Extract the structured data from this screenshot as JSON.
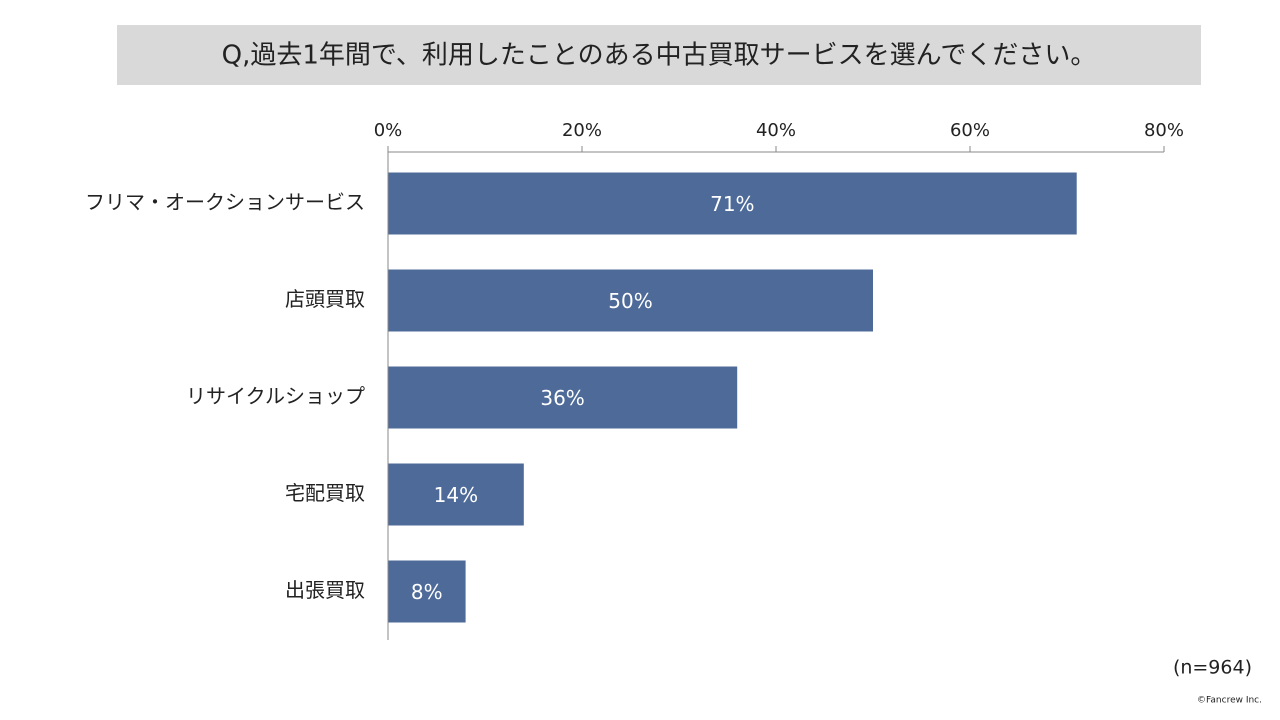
{
  "chart_data": {
    "type": "bar",
    "orientation": "horizontal",
    "title": "Q,過去1年間で、利用したことのある中古買取サービスを選んでください。",
    "categories": [
      "フリマ・オークションサービス",
      "店頭買取",
      "リサイクルショップ",
      "宅配買取",
      "出張買取"
    ],
    "values": [
      71,
      50,
      36,
      14,
      8
    ],
    "value_labels": [
      "71%",
      "50%",
      "36%",
      "14%",
      "8%"
    ],
    "color": "#4d6a98",
    "xlim": [
      0,
      80
    ],
    "xticks": [
      {
        "value": 0,
        "label": "0%"
      },
      {
        "value": 20,
        "label": "20%"
      },
      {
        "value": 40,
        "label": "40%"
      },
      {
        "value": 60,
        "label": "60%"
      },
      {
        "value": 80,
        "label": "80%"
      }
    ],
    "note": "(n=964)",
    "credit": "©Fancrew Inc."
  }
}
